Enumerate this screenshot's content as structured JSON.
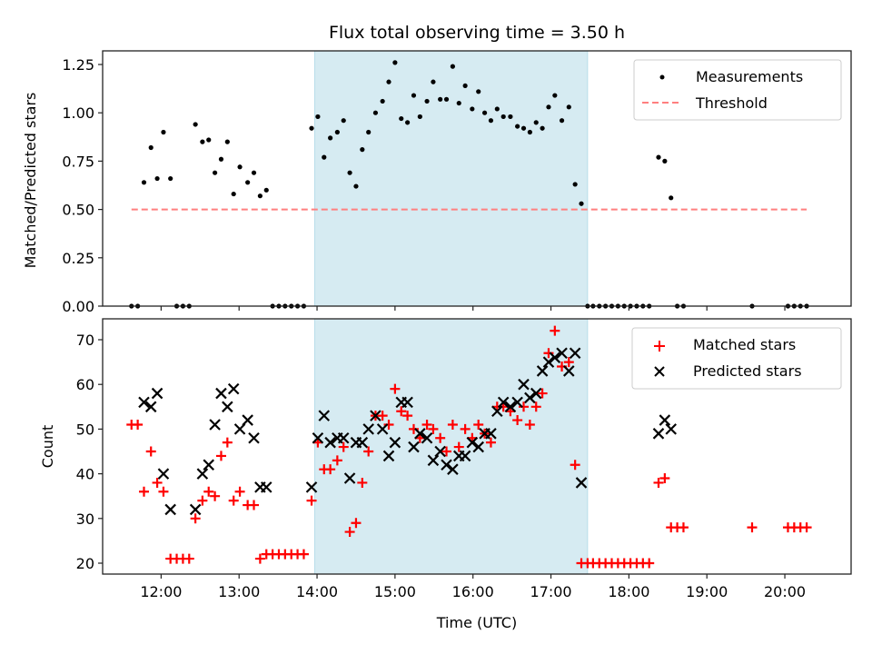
{
  "chart_data": [
    {
      "type": "scatter",
      "panel": "top",
      "title": "Flux total observing time = 3.50 h",
      "xlabel": "",
      "ylabel": "Matched/Predicted stars",
      "ylim": [
        0.0,
        1.32
      ],
      "yticks": [
        0.0,
        0.25,
        0.5,
        0.75,
        1.0,
        1.25
      ],
      "ytick_labels": [
        "0.00",
        "0.25",
        "0.50",
        "0.75",
        "1.00",
        "1.25"
      ],
      "xlim_hours": [
        11.25,
        20.85
      ],
      "xticks_hours": [
        12,
        13,
        14,
        15,
        16,
        17,
        18,
        19,
        20
      ],
      "grid": false,
      "legend": "top-right",
      "shaded_interval_hours": [
        13.97,
        17.47
      ],
      "series": [
        {
          "name": "Measurements",
          "marker": "dot",
          "color": "#000000",
          "x_hours": [
            11.62,
            11.7,
            11.78,
            11.87,
            11.95,
            12.03,
            12.12,
            12.2,
            12.28,
            12.36,
            12.44,
            12.53,
            12.61,
            12.69,
            12.77,
            12.85,
            12.93,
            13.01,
            13.11,
            13.19,
            13.27,
            13.35,
            13.43,
            13.51,
            13.59,
            13.67,
            13.75,
            13.83,
            13.93,
            14.01,
            14.09,
            14.17,
            14.26,
            14.34,
            14.42,
            14.5,
            14.58,
            14.66,
            14.75,
            14.84,
            14.92,
            15.0,
            15.08,
            15.16,
            15.24,
            15.32,
            15.41,
            15.49,
            15.58,
            15.66,
            15.74,
            15.82,
            15.9,
            15.99,
            16.07,
            16.15,
            16.23,
            16.31,
            16.39,
            16.48,
            16.57,
            16.65,
            16.73,
            16.81,
            16.89,
            16.97,
            17.05,
            17.14,
            17.23,
            17.31,
            17.39,
            17.47,
            17.54,
            17.62,
            17.7,
            17.78,
            17.86,
            17.94,
            18.02,
            18.1,
            18.18,
            18.26,
            18.38,
            18.46,
            18.54,
            18.62,
            18.7,
            19.58,
            20.04,
            20.12,
            20.2,
            20.28
          ],
          "y": [
            0,
            0,
            0.64,
            0.82,
            0.66,
            0.9,
            0.66,
            0,
            0,
            0,
            0.94,
            0.85,
            0.86,
            0.69,
            0.76,
            0.85,
            0.58,
            0.72,
            0.64,
            0.69,
            0.57,
            0.6,
            0,
            0,
            0,
            0,
            0,
            0,
            0.92,
            0.98,
            0.77,
            0.87,
            0.9,
            0.96,
            0.69,
            0.62,
            0.81,
            0.9,
            1.0,
            1.06,
            1.16,
            1.26,
            0.97,
            0.95,
            1.09,
            0.98,
            1.06,
            1.16,
            1.07,
            1.07,
            1.24,
            1.05,
            1.14,
            1.02,
            1.11,
            1.0,
            0.96,
            1.02,
            0.98,
            0.98,
            0.93,
            0.92,
            0.9,
            0.95,
            0.92,
            1.03,
            1.09,
            0.96,
            1.03,
            0.63,
            0.53,
            0,
            0,
            0,
            0,
            0,
            0,
            0,
            0,
            0,
            0,
            0,
            0.77,
            0.75,
            0.56,
            0,
            0,
            0,
            0,
            0,
            0,
            0
          ]
        },
        {
          "name": "Threshold",
          "marker": "dashed-line",
          "color": "#ff7f7f",
          "x_hours": [
            11.62,
            20.28
          ],
          "y": [
            0.5,
            0.5
          ]
        }
      ]
    },
    {
      "type": "scatter",
      "panel": "bottom",
      "title": "",
      "xlabel": "Time (UTC)",
      "ylabel": "Count",
      "ylim": [
        17.5,
        74.5
      ],
      "yticks": [
        20,
        30,
        40,
        50,
        60,
        70
      ],
      "ytick_labels": [
        "20",
        "30",
        "40",
        "50",
        "60",
        "70"
      ],
      "xlim_hours": [
        11.25,
        20.85
      ],
      "xticks_hours": [
        12,
        13,
        14,
        15,
        16,
        17,
        18,
        19,
        20
      ],
      "xtick_labels": [
        "12:00",
        "13:00",
        "14:00",
        "15:00",
        "16:00",
        "17:00",
        "18:00",
        "19:00",
        "20:00"
      ],
      "grid": false,
      "legend": "top-right",
      "shaded_interval_hours": [
        13.97,
        17.47
      ],
      "series": [
        {
          "name": "Matched stars",
          "marker": "plus",
          "color": "#ff0000",
          "x_hours": [
            11.62,
            11.7,
            11.78,
            11.87,
            11.95,
            12.03,
            12.12,
            12.2,
            12.28,
            12.36,
            12.44,
            12.53,
            12.61,
            12.69,
            12.77,
            12.85,
            12.93,
            13.01,
            13.11,
            13.19,
            13.27,
            13.35,
            13.43,
            13.51,
            13.59,
            13.67,
            13.75,
            13.83,
            13.93,
            14.01,
            14.09,
            14.17,
            14.26,
            14.34,
            14.42,
            14.5,
            14.58,
            14.66,
            14.75,
            14.84,
            14.92,
            15.0,
            15.08,
            15.16,
            15.24,
            15.32,
            15.41,
            15.49,
            15.58,
            15.66,
            15.74,
            15.82,
            15.9,
            15.99,
            16.07,
            16.15,
            16.23,
            16.31,
            16.39,
            16.48,
            16.57,
            16.65,
            16.73,
            16.81,
            16.89,
            16.97,
            17.05,
            17.14,
            17.23,
            17.31,
            17.39,
            17.47,
            17.54,
            17.62,
            17.7,
            17.78,
            17.86,
            17.94,
            18.02,
            18.1,
            18.18,
            18.26,
            18.38,
            18.46,
            18.54,
            18.62,
            18.7,
            19.58,
            20.04,
            20.12,
            20.2,
            20.28
          ],
          "y": [
            51,
            51,
            36,
            45,
            38,
            36,
            21,
            21,
            21,
            21,
            30,
            34,
            36,
            35,
            44,
            47,
            34,
            36,
            33,
            33,
            21,
            22,
            22,
            22,
            22,
            22,
            22,
            22,
            34,
            47,
            41,
            41,
            43,
            46,
            27,
            29,
            38,
            45,
            53,
            53,
            51,
            59,
            54,
            53,
            50,
            48,
            51,
            50,
            48,
            45,
            51,
            46,
            50,
            48,
            51,
            49,
            47,
            55,
            55,
            54,
            52,
            55,
            51,
            55,
            58,
            67,
            72,
            64,
            65,
            42,
            20,
            20,
            20,
            20,
            20,
            20,
            20,
            20,
            20,
            20,
            20,
            20,
            38,
            39,
            28,
            28,
            28,
            28,
            28,
            28,
            28,
            28
          ]
        },
        {
          "name": "Predicted stars",
          "marker": "x",
          "color": "#000000",
          "x_hours": [
            11.78,
            11.87,
            11.95,
            12.03,
            12.12,
            12.44,
            12.53,
            12.61,
            12.69,
            12.77,
            12.85,
            12.93,
            13.01,
            13.11,
            13.19,
            13.27,
            13.35,
            13.93,
            14.01,
            14.09,
            14.17,
            14.26,
            14.34,
            14.42,
            14.5,
            14.58,
            14.66,
            14.75,
            14.84,
            14.92,
            15.0,
            15.08,
            15.16,
            15.24,
            15.32,
            15.41,
            15.49,
            15.58,
            15.66,
            15.74,
            15.82,
            15.9,
            15.99,
            16.07,
            16.15,
            16.23,
            16.31,
            16.39,
            16.48,
            16.57,
            16.65,
            16.73,
            16.81,
            16.89,
            16.97,
            17.05,
            17.14,
            17.23,
            17.31,
            17.39,
            18.38,
            18.46,
            18.54
          ],
          "y": [
            56,
            55,
            58,
            40,
            32,
            32,
            40,
            42,
            51,
            58,
            55,
            59,
            50,
            52,
            48,
            37,
            37,
            37,
            48,
            53,
            47,
            48,
            48,
            39,
            47,
            47,
            50,
            53,
            50,
            44,
            47,
            56,
            56,
            46,
            49,
            48,
            43,
            45,
            42,
            41,
            44,
            44,
            47,
            46,
            49,
            49,
            54,
            56,
            55,
            56,
            60,
            57,
            58,
            63,
            65,
            66,
            67,
            63,
            67,
            38,
            49,
            52,
            50
          ]
        }
      ]
    }
  ],
  "legends": {
    "top": [
      "Measurements",
      "Threshold"
    ],
    "bottom": [
      "Matched stars",
      "Predicted stars"
    ]
  },
  "colors": {
    "shade": "#add8e6",
    "threshold": "#ff7f7f",
    "matched": "#ff0000",
    "predicted": "#000000",
    "measurement": "#000000"
  }
}
